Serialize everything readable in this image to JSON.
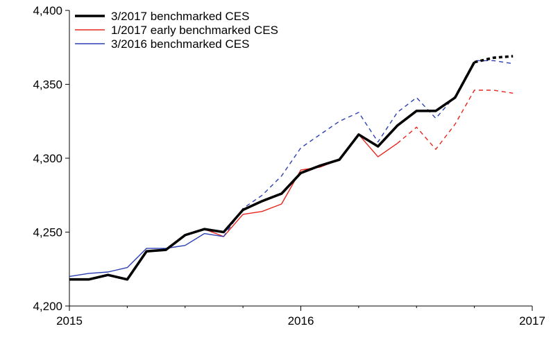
{
  "chart_data": {
    "type": "line",
    "title": "",
    "xlabel": "",
    "ylabel": "",
    "ylim": [
      4200,
      4400
    ],
    "xlim": [
      2015,
      2017
    ],
    "yticks": [
      4200,
      4250,
      4300,
      4350,
      4400
    ],
    "ytick_labels": [
      "4,200",
      "4,250",
      "4,300",
      "4,350",
      "4,400"
    ],
    "xticks": [
      2015,
      2016,
      2017
    ],
    "xtick_labels": [
      "2015",
      "2016",
      "2017"
    ],
    "legend_position": "top-left",
    "grid": false,
    "series": [
      {
        "name": "3/2017 benchmarked CES",
        "color": "#000000",
        "line": "thick",
        "x": [
          "2015-01",
          "2015-02",
          "2015-03",
          "2015-04",
          "2015-05",
          "2015-06",
          "2015-07",
          "2015-08",
          "2015-09",
          "2015-10",
          "2015-11",
          "2015-12",
          "2016-01",
          "2016-02",
          "2016-03",
          "2016-04",
          "2016-05",
          "2016-06",
          "2016-07",
          "2016-08",
          "2016-09",
          "2016-10",
          "2016-11",
          "2016-12"
        ],
        "values": [
          4218,
          4218,
          4221,
          4218,
          4237,
          4238,
          4248,
          4252,
          4250,
          4265,
          4271,
          4276,
          4290,
          4295,
          4299,
          4316,
          4308,
          4322,
          4332,
          4332,
          4341,
          4365,
          4368,
          4369
        ],
        "dashed_from": "2016-10"
      },
      {
        "name": "1/2017 early benchmarked CES",
        "color": "#e8231c",
        "line": "thin",
        "x": [
          "2015-01",
          "2015-02",
          "2015-03",
          "2015-04",
          "2015-05",
          "2015-06",
          "2015-07",
          "2015-08",
          "2015-09",
          "2015-10",
          "2015-11",
          "2015-12",
          "2016-01",
          "2016-02",
          "2016-03",
          "2016-04",
          "2016-05",
          "2016-06",
          "2016-07",
          "2016-08",
          "2016-09",
          "2016-10",
          "2016-11",
          "2016-12"
        ],
        "values": [
          4218,
          4218,
          4221,
          4218,
          4237,
          4238,
          4248,
          4252,
          4247,
          4262,
          4264,
          4269,
          4292,
          4294,
          4299,
          4316,
          4301,
          4310,
          4321,
          4306,
          4323,
          4346,
          4346,
          4344
        ],
        "dashed_from": "2016-06"
      },
      {
        "name": "3/2016 benchmarked CES",
        "color": "#2b3fb4",
        "line": "thin",
        "x": [
          "2015-01",
          "2015-02",
          "2015-03",
          "2015-04",
          "2015-05",
          "2015-06",
          "2015-07",
          "2015-08",
          "2015-09",
          "2015-10",
          "2015-11",
          "2015-12",
          "2016-01",
          "2016-02",
          "2016-03",
          "2016-04",
          "2016-05",
          "2016-06",
          "2016-07",
          "2016-08",
          "2016-09",
          "2016-10",
          "2016-11",
          "2016-12"
        ],
        "values": [
          4220,
          4222,
          4223,
          4226,
          4239,
          4239,
          4241,
          4249,
          4247,
          4266,
          4275,
          4288,
          4307,
          4316,
          4325,
          4331,
          4311,
          4331,
          4341,
          4327,
          4342,
          4366,
          4366,
          4364
        ],
        "dashed_from": "2015-09"
      }
    ]
  }
}
